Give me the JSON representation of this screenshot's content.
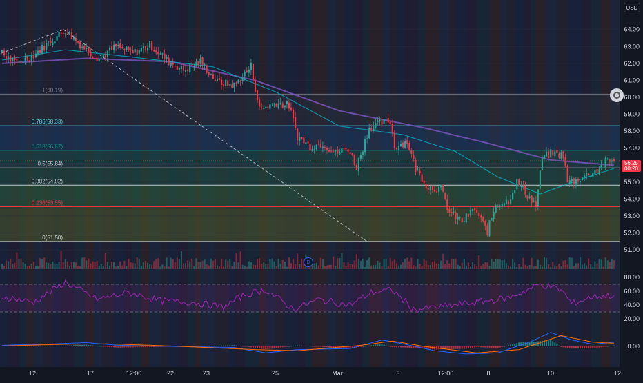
{
  "currency": "USD",
  "current_price": "56.25",
  "countdown": "00:20",
  "dividend_marker": "D",
  "colors": {
    "background": "#131722",
    "up": "#26a69a",
    "down": "#f23645",
    "rsi": "#9c27b0",
    "macd": "#2962ff",
    "signal": "#ff6d00",
    "ema_fast": "#00bcd4",
    "ema_slow": "#7e57c2"
  },
  "chart_data": [
    {
      "type": "candlestick",
      "title": "",
      "y_ticks": [
        "64.00",
        "63.00",
        "62.00",
        "61.00",
        "60.00",
        "59.00",
        "58.00",
        "57.00",
        "56.00",
        "55.00",
        "54.00",
        "53.00",
        "52.00",
        "51.00"
      ],
      "x_ticks": [
        "12",
        "17",
        "12:00",
        "22",
        "23",
        "25",
        "Mar",
        "3",
        "12:00",
        "8",
        "10",
        "12"
      ],
      "ylim": [
        50.6,
        64.6
      ],
      "fib_levels": [
        {
          "label": "1(60.19)",
          "value": 60.19,
          "color": "#787b86"
        },
        {
          "label": "0.786(58.33)",
          "value": 58.33,
          "color": "#4dd0e1"
        },
        {
          "label": "0.618(56.87)",
          "value": 56.87,
          "color": "#089981"
        },
        {
          "label": "0.5(55.84)",
          "value": 55.84,
          "color": "#d1d4dc"
        },
        {
          "label": "0.382(54.82)",
          "value": 54.82,
          "color": "#d1d4dc"
        },
        {
          "label": "0.236(53.55)",
          "value": 53.55,
          "color": "#f23645"
        },
        {
          "label": "0(51.50)",
          "value": 51.5,
          "color": "#d1d4dc"
        }
      ],
      "close_anchors": [
        [
          0,
          62.6
        ],
        [
          6,
          62.0
        ],
        [
          14,
          62.4
        ],
        [
          22,
          63.2
        ],
        [
          30,
          64.0
        ],
        [
          38,
          63.0
        ],
        [
          46,
          62.3
        ],
        [
          54,
          63.0
        ],
        [
          62,
          62.6
        ],
        [
          70,
          63.1
        ],
        [
          78,
          62.2
        ],
        [
          86,
          61.6
        ],
        [
          94,
          62.1
        ],
        [
          102,
          60.9
        ],
        [
          110,
          60.7
        ],
        [
          118,
          61.8
        ],
        [
          122,
          59.3
        ],
        [
          130,
          59.7
        ],
        [
          136,
          59.5
        ],
        [
          140,
          57.7
        ],
        [
          146,
          57.1
        ],
        [
          152,
          57.3
        ],
        [
          158,
          56.7
        ],
        [
          164,
          57.0
        ],
        [
          168,
          55.9
        ],
        [
          174,
          58.2
        ],
        [
          180,
          58.5
        ],
        [
          184,
          58.6
        ],
        [
          186,
          57.1
        ],
        [
          192,
          57.4
        ],
        [
          196,
          55.8
        ],
        [
          202,
          54.7
        ],
        [
          208,
          54.6
        ],
        [
          212,
          53.2
        ],
        [
          218,
          52.7
        ],
        [
          224,
          53.4
        ],
        [
          230,
          52.1
        ],
        [
          234,
          53.7
        ],
        [
          240,
          53.9
        ],
        [
          244,
          55.0
        ],
        [
          250,
          54.1
        ],
        [
          253,
          53.6
        ],
        [
          256,
          56.4
        ],
        [
          260,
          56.7
        ],
        [
          266,
          56.6
        ],
        [
          268,
          55.0
        ],
        [
          272,
          55.1
        ],
        [
          278,
          55.5
        ],
        [
          282,
          55.7
        ],
        [
          286,
          56.2
        ],
        [
          290,
          56.25
        ]
      ],
      "ema_fast_anchors": [
        [
          0,
          62.2
        ],
        [
          30,
          62.8
        ],
        [
          60,
          62.4
        ],
        [
          100,
          61.8
        ],
        [
          130,
          60.3
        ],
        [
          160,
          58.3
        ],
        [
          190,
          57.8
        ],
        [
          215,
          56.8
        ],
        [
          235,
          55.3
        ],
        [
          255,
          54.3
        ],
        [
          275,
          55.2
        ],
        [
          290,
          55.8
        ]
      ],
      "ema_slow_anchors": [
        [
          0,
          62.0
        ],
        [
          40,
          62.3
        ],
        [
          80,
          62.1
        ],
        [
          120,
          61.0
        ],
        [
          160,
          59.2
        ],
        [
          200,
          58.2
        ],
        [
          230,
          57.3
        ],
        [
          260,
          56.3
        ],
        [
          290,
          56.0
        ]
      ]
    },
    {
      "type": "line",
      "title": "",
      "y_ticks": [
        "80.00",
        "60.00",
        "40.00",
        "20.00"
      ],
      "ylim": [
        12,
        90
      ],
      "bands": [
        70,
        30
      ],
      "rsi_anchors": [
        [
          0,
          52
        ],
        [
          15,
          44
        ],
        [
          30,
          73
        ],
        [
          45,
          48
        ],
        [
          60,
          58
        ],
        [
          75,
          46
        ],
        [
          90,
          44
        ],
        [
          105,
          37
        ],
        [
          115,
          55
        ],
        [
          125,
          62
        ],
        [
          138,
          34
        ],
        [
          150,
          48
        ],
        [
          165,
          40
        ],
        [
          175,
          58
        ],
        [
          185,
          62
        ],
        [
          195,
          33
        ],
        [
          210,
          38
        ],
        [
          225,
          44
        ],
        [
          240,
          50
        ],
        [
          255,
          70
        ],
        [
          265,
          62
        ],
        [
          270,
          42
        ],
        [
          280,
          52
        ],
        [
          290,
          54
        ]
      ]
    },
    {
      "type": "line",
      "title": "",
      "y_ticks": [
        "0.00"
      ],
      "ylim": [
        -0.9,
        0.9
      ],
      "macd_anchors": [
        [
          0,
          0.05
        ],
        [
          25,
          0.12
        ],
        [
          40,
          0.18
        ],
        [
          55,
          0.05
        ],
        [
          80,
          0.0
        ],
        [
          110,
          -0.05
        ],
        [
          125,
          -0.3
        ],
        [
          140,
          -0.15
        ],
        [
          165,
          -0.1
        ],
        [
          180,
          0.3
        ],
        [
          190,
          0.12
        ],
        [
          205,
          -0.2
        ],
        [
          220,
          -0.35
        ],
        [
          235,
          -0.3
        ],
        [
          250,
          0.2
        ],
        [
          260,
          0.65
        ],
        [
          270,
          0.3
        ],
        [
          280,
          0.1
        ],
        [
          290,
          0.2
        ]
      ],
      "signal_anchors": [
        [
          0,
          0.02
        ],
        [
          30,
          0.1
        ],
        [
          50,
          0.12
        ],
        [
          80,
          0.02
        ],
        [
          120,
          -0.15
        ],
        [
          140,
          -0.2
        ],
        [
          170,
          0.05
        ],
        [
          185,
          0.25
        ],
        [
          200,
          0.0
        ],
        [
          225,
          -0.3
        ],
        [
          245,
          -0.15
        ],
        [
          265,
          0.5
        ],
        [
          280,
          0.2
        ],
        [
          290,
          0.15
        ]
      ]
    }
  ]
}
